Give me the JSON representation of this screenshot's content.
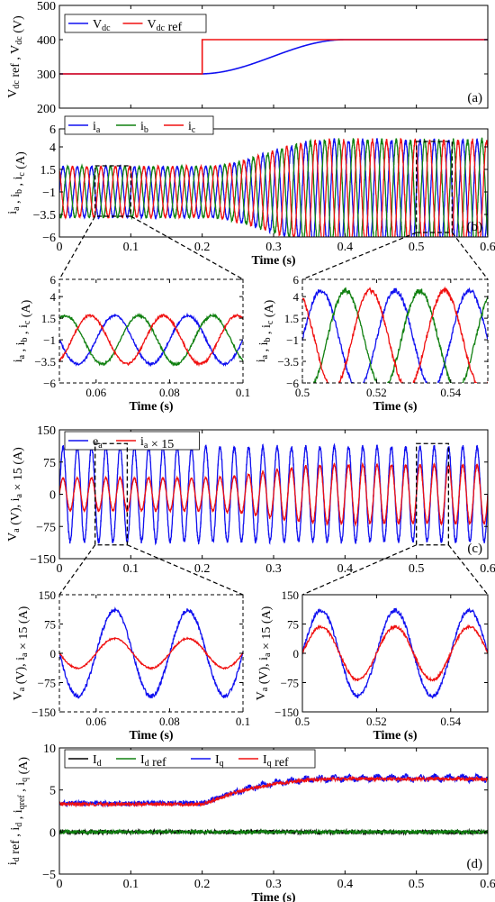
{
  "colors": {
    "blue": "#1010f0",
    "red": "#f01010",
    "green": "#108010",
    "black": "#000000"
  },
  "chart_data": [
    {
      "id": "a",
      "type": "line",
      "panel_label": "(a)",
      "ylabel": "V_dc ref , V_dc (V)",
      "xlabel": "",
      "xlim": [
        0,
        0.6
      ],
      "ylim": [
        200,
        500
      ],
      "xticks": [
        0,
        0.1,
        0.2,
        0.3,
        0.4,
        0.5,
        0.6
      ],
      "yticks": [
        200,
        300,
        400,
        500
      ],
      "show_xtick_labels": false,
      "legend": "top-left",
      "series": [
        {
          "name": "V_dc",
          "color": "blue",
          "model": "vdc",
          "points": [
            [
              0,
              300
            ],
            [
              0.2,
              300
            ],
            [
              0.25,
              325
            ],
            [
              0.3,
              358
            ],
            [
              0.35,
              385
            ],
            [
              0.4,
              398
            ],
            [
              0.6,
              400
            ]
          ]
        },
        {
          "name": "V_dc ref",
          "color": "red",
          "model": "step",
          "points": [
            [
              0,
              300
            ],
            [
              0.2,
              300
            ],
            [
              0.2,
              400
            ],
            [
              0.6,
              400
            ]
          ]
        }
      ]
    },
    {
      "id": "b",
      "type": "line",
      "panel_label": "(b)",
      "ylabel": "i_a , i_b , i_c (A)",
      "xlabel": "Time (s)",
      "xlim": [
        0,
        0.6
      ],
      "ylim": [
        -6,
        6
      ],
      "xticks": [
        0,
        0.1,
        0.2,
        0.3,
        0.4,
        0.5,
        0.6
      ],
      "yticks": [
        -6,
        -3.5,
        -1,
        1.5,
        4,
        6
      ],
      "ytick_labels": [
        "−6",
        "−3.5",
        "−1",
        "1.5",
        "4",
        "6"
      ],
      "show_xtick_labels": true,
      "legend": "top-left",
      "frequency_hz": 50,
      "offset": -1.0,
      "amplitude": {
        "before": 2.8,
        "after": 5.7,
        "ramp_start": 0.2,
        "ramp_end": 0.38
      },
      "series": [
        {
          "name": "i_a",
          "color": "blue",
          "phase_deg": 0
        },
        {
          "name": "i_b",
          "color": "green",
          "phase_deg": -120
        },
        {
          "name": "i_c",
          "color": "red",
          "phase_deg": 120
        }
      ],
      "zoom_boxes": [
        {
          "x": [
            0.05,
            0.1
          ],
          "y": [
            -3.7,
            1.9
          ]
        },
        {
          "x": [
            0.5,
            0.55
          ],
          "y": [
            -5.5,
            4.6
          ]
        }
      ]
    },
    {
      "id": "b1",
      "type": "line",
      "xlabel": "Time (s)",
      "ylabel": "i_a , i_b , i_c (A)",
      "xlim": [
        0.05,
        0.1
      ],
      "ylim": [
        -6,
        6
      ],
      "xticks": [
        0.06,
        0.08,
        0.1
      ],
      "yticks": [
        -6,
        -3.5,
        -1,
        1.5,
        4,
        6
      ],
      "ytick_labels": [
        "−6",
        "−3.5",
        "−1",
        "1.5",
        "4",
        "6"
      ],
      "series_from": "b",
      "dashed_border": true
    },
    {
      "id": "b2",
      "type": "line",
      "xlabel": "Time (s)",
      "ylabel": "i_a , i_b , i_c (A)",
      "xlim": [
        0.5,
        0.55
      ],
      "ylim": [
        -6,
        6
      ],
      "xticks": [
        0.5,
        0.52,
        0.54
      ],
      "yticks": [
        -6,
        -3.5,
        -1,
        1.5,
        4,
        6
      ],
      "ytick_labels": [
        "−6",
        "−3.5",
        "−1",
        "1.5",
        "4",
        "6"
      ],
      "series_from": "b",
      "dashed_border": true
    },
    {
      "id": "c",
      "type": "line",
      "panel_label": "(c)",
      "ylabel": "V_a (V), i_a × 15 (A)",
      "xlabel": "",
      "xlim": [
        0,
        0.6
      ],
      "ylim": [
        -150,
        150
      ],
      "xticks": [
        0,
        0.1,
        0.2,
        0.3,
        0.4,
        0.5,
        0.6
      ],
      "yticks": [
        -150,
        -75,
        0,
        75,
        150
      ],
      "ytick_labels": [
        "−150",
        "−75",
        "0",
        "75",
        "150"
      ],
      "show_xtick_labels": true,
      "legend": "top-left",
      "frequency_hz": 50,
      "series": [
        {
          "name": "e_a",
          "color": "blue",
          "amplitude": 110,
          "phase_deg": 0
        },
        {
          "name": "i_a × 15",
          "color": "red",
          "phase_deg": 0,
          "amplitude": {
            "before": 38,
            "after": 68,
            "ramp_start": 0.2,
            "ramp_end": 0.38
          }
        }
      ],
      "zoom_boxes": [
        {
          "x": [
            0.05,
            0.095
          ],
          "y": [
            -118,
            118
          ]
        },
        {
          "x": [
            0.5,
            0.545
          ],
          "y": [
            -118,
            118
          ]
        }
      ]
    },
    {
      "id": "c1",
      "type": "line",
      "xlabel": "Time (s)",
      "ylabel": "V_a (V), i_a × 15 (A)",
      "xlim": [
        0.05,
        0.1
      ],
      "ylim": [
        -150,
        150
      ],
      "xticks": [
        0.06,
        0.08,
        0.1
      ],
      "yticks": [
        -150,
        -75,
        0,
        75,
        150
      ],
      "ytick_labels": [
        "−150",
        "−75",
        "0",
        "75",
        "150"
      ],
      "series_from": "c",
      "dashed_border": true
    },
    {
      "id": "c2",
      "type": "line",
      "xlabel": "Time (s)",
      "ylabel": "V_a (V), i_a × 15 (A)",
      "xlim": [
        0.5,
        0.55
      ],
      "ylim": [
        -150,
        150
      ],
      "xticks": [
        0.5,
        0.52,
        0.54
      ],
      "yticks": [
        -150,
        -75,
        0,
        75,
        150
      ],
      "ytick_labels": [
        "−150",
        "−75",
        "0",
        "75",
        "150"
      ],
      "series_from": "c",
      "dashed_border": false
    },
    {
      "id": "d",
      "type": "line",
      "panel_label": "(d)",
      "ylabel": "i_d ref , i_d , i_qref , i_q (A)",
      "xlabel": "Time (s)",
      "xlim": [
        0,
        0.6
      ],
      "ylim": [
        -5,
        10
      ],
      "xticks": [
        0,
        0.1,
        0.2,
        0.3,
        0.4,
        0.5,
        0.6
      ],
      "yticks": [
        -5,
        0,
        5,
        10
      ],
      "ytick_labels": [
        "−5",
        "0",
        "5",
        "10"
      ],
      "show_xtick_labels": true,
      "legend": "top",
      "series": [
        {
          "name": "I_d",
          "color": "black",
          "model": "noisy",
          "base": [
            [
              0,
              0
            ],
            [
              0.6,
              0
            ]
          ],
          "noise": 0.25
        },
        {
          "name": "I_d ref",
          "color": "green",
          "model": "noisy",
          "base": [
            [
              0,
              0
            ],
            [
              0.6,
              0
            ]
          ],
          "noise": 0.2
        },
        {
          "name": "I_q",
          "color": "blue",
          "model": "noisy",
          "base": [
            [
              0,
              3.4
            ],
            [
              0.2,
              3.4
            ],
            [
              0.25,
              4.9
            ],
            [
              0.3,
              5.8
            ],
            [
              0.35,
              6.3
            ],
            [
              0.4,
              6.4
            ],
            [
              0.6,
              6.4
            ]
          ],
          "noise": 0.3
        },
        {
          "name": "I_q ref",
          "color": "red",
          "model": "noisy",
          "base": [
            [
              0,
              3.3
            ],
            [
              0.2,
              3.3
            ],
            [
              0.25,
              4.8
            ],
            [
              0.3,
              5.7
            ],
            [
              0.35,
              6.2
            ],
            [
              0.4,
              6.3
            ],
            [
              0.6,
              6.3
            ]
          ],
          "noise": 0.2
        }
      ]
    }
  ]
}
